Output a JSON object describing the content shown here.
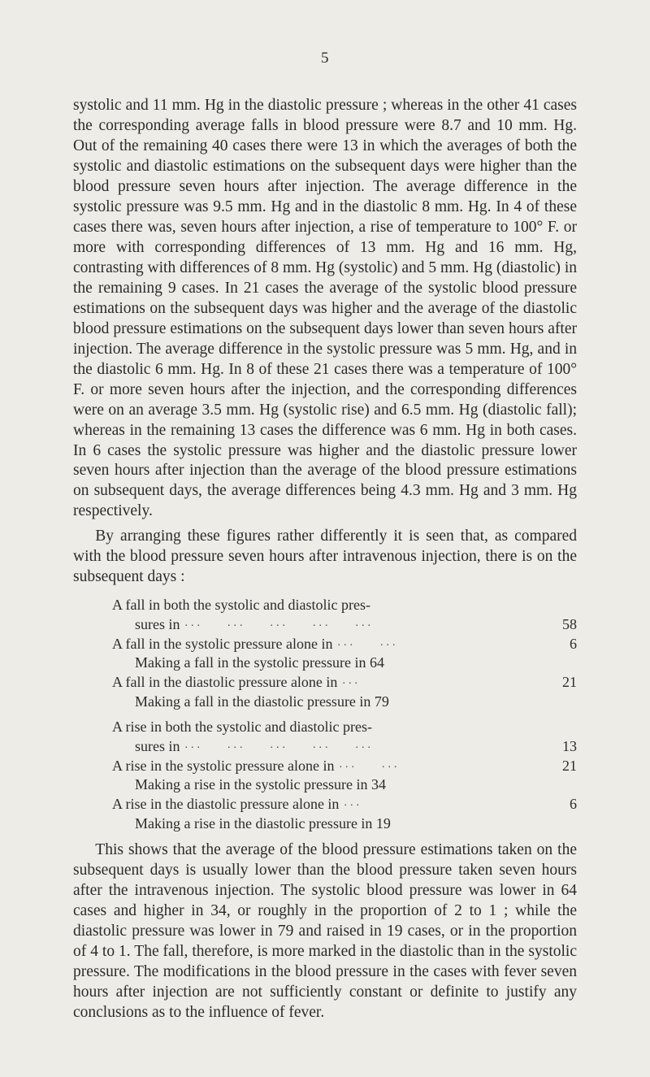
{
  "pageNumber": "5",
  "p1": "systolic and 11 mm. Hg in the diastolic pressure ; whereas in the other 41 cases the corresponding average falls in blood pressure were 8.7 and 10 mm. Hg. Out of the remaining 40 cases there were 13 in which the averages of both the systolic and diastolic estimations on the sub­sequent days were higher than the blood pressure seven hours after injection. The average difference in the systolic pressure was 9.5 mm. Hg and in the diastolic 8 mm. Hg. In 4 of these cases there was, seven hours after injection, a rise of temperature to 100° F. or more with corresponding differences of 13 mm. Hg and 16 mm. Hg, contrasting with differences of 8 mm. Hg (systolic) and 5 mm. Hg (diastolic) in the remaining 9 cases. In 21 cases the average of the systolic blood pressure estimations on the subsequent days was higher and the average of the diastolic blood pressure estimations on the subsequent days lower than seven hours after injection. The average difference in the systolic pressure was 5 mm. Hg, and in the diastolic 6 mm. Hg. In 8 of these 21 cases there was a temperature of 100° F. or more seven hours after the injection, and the corresponding differences were on an average 3.5 mm. Hg (systolic rise) and 6.5 mm. Hg (diastolic fall); whereas in the remaining 13 cases the difference was 6 mm. Hg in both cases. In 6 cases the systolic pres­sure was higher and the diastolic pressure lower seven hours after injection than the average of the blood pres­sure estimations on subsequent days, the average differences being 4.3 mm. Hg and 3 mm. Hg respectively.",
  "p2": "By arranging these figures rather differently it is seen that, as compared with the blood pressure seven hours after intravenous injection, there is on the subsequent days :",
  "list": {
    "a1": {
      "line1": "A fall in both the systolic and diastolic pres-",
      "line2": "sures in",
      "value": "58"
    },
    "a2": {
      "text": "A fall in the systolic pressure alone in",
      "value": "6"
    },
    "a2sub": "Making a fall in the systolic pressure in 64",
    "a3": {
      "text": "A fall in the diastolic pressure alone in",
      "value": "21"
    },
    "a3sub": "Making a fall in the diastolic pressure in 79",
    "b1": {
      "line1": "A rise in both the systolic and diastolic pres-",
      "line2": "sures in",
      "value": "13"
    },
    "b2": {
      "text": "A rise in the systolic pressure alone in",
      "value": "21"
    },
    "b2sub": "Making a rise in the systolic pressure in 34",
    "b3": {
      "text": "A rise in the diastolic pressure alone in",
      "value": "6"
    },
    "b3sub": "Making a rise in the diastolic pressure in 19"
  },
  "p3": "This shows that the average of the blood pressure estimations taken on the subsequent days is usually lower than the blood pressure taken seven hours after the intra­venous injection. The systolic blood pressure was lower in 64 cases and higher in 34, or roughly in the proportion of 2 to 1 ; while the diastolic pressure was lower in 79 and raised in 19 cases, or in the proportion of 4 to 1. The fall, therefore, is more marked in the diastolic than in the systolic pressure. The modifications in the blood pressure in the cases with fever seven hours after injection are not sufficiently constant or definite to justify any conclusions as to the influence of fever.",
  "leader": "..."
}
